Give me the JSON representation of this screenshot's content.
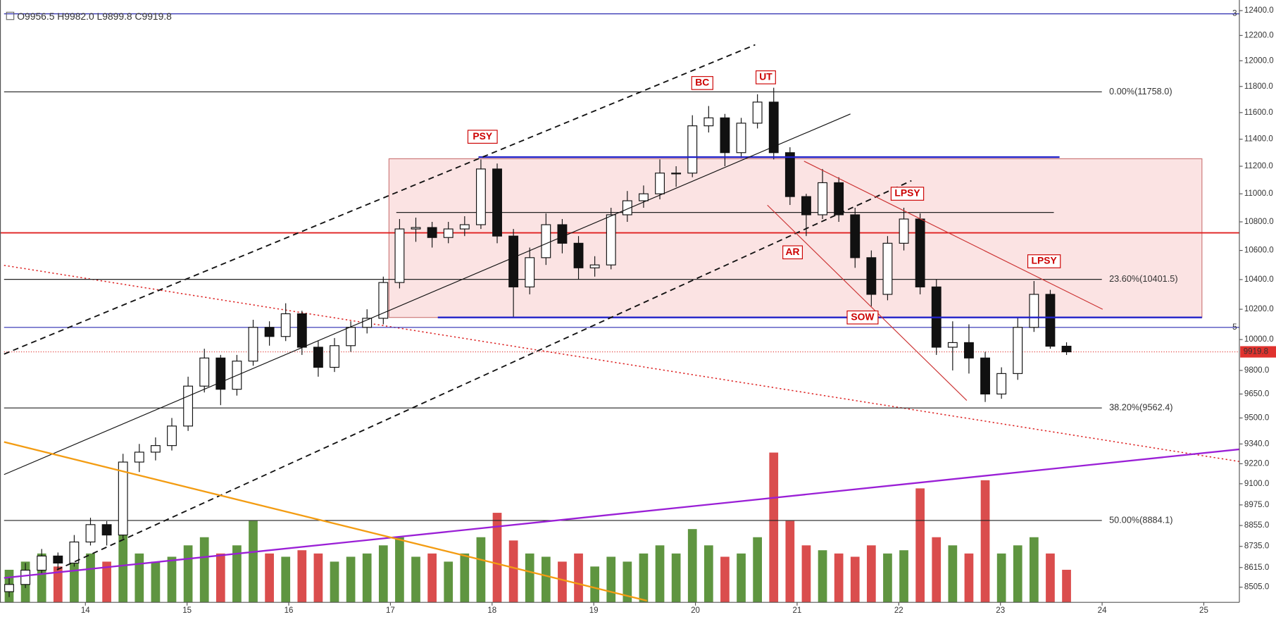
{
  "chart_data": {
    "type": "candlestick",
    "log_scale": true,
    "ohlc_header": "O9956.5 H9982.0 L9899.8 C9919.8",
    "x": [
      13.25,
      13.41,
      13.57,
      13.73,
      13.89,
      14.05,
      14.21,
      14.37,
      14.53,
      14.69,
      14.85,
      15.01,
      15.17,
      15.33,
      15.49,
      15.65,
      15.81,
      15.97,
      16.13,
      16.29,
      16.45,
      16.61,
      16.77,
      16.93,
      17.09,
      17.25,
      17.41,
      17.57,
      17.73,
      17.89,
      18.05,
      18.21,
      18.37,
      18.53,
      18.69,
      18.85,
      19.01,
      19.17,
      19.33,
      19.49,
      19.65,
      19.81,
      19.97,
      20.13,
      20.29,
      20.45,
      20.61,
      20.77,
      20.93,
      21.09,
      21.25,
      21.41,
      21.57,
      21.73,
      21.89,
      22.05,
      22.21,
      22.37,
      22.53,
      22.69,
      22.85,
      23.01,
      23.17,
      23.33,
      23.49,
      23.65
    ],
    "open": [
      8480,
      8520,
      8600,
      8680,
      8640,
      8760,
      8860,
      8800,
      9230,
      9290,
      9330,
      9450,
      9700,
      9880,
      9680,
      9860,
      10080,
      10020,
      10170,
      9950,
      9820,
      9960,
      10080,
      10140,
      10380,
      10750,
      10760,
      10690,
      10750,
      10780,
      11180,
      10700,
      10350,
      10550,
      10780,
      10650,
      10480,
      10500,
      10850,
      10950,
      11000,
      11150,
      11150,
      11500,
      11560,
      11300,
      11520,
      11680,
      11300,
      10980,
      10850,
      11080,
      10850,
      10550,
      10300,
      10650,
      10820,
      10350,
      9950,
      9980,
      9880,
      9650,
      9780,
      10080,
      10300,
      9956.5
    ],
    "high": [
      8560,
      8640,
      8720,
      8700,
      8800,
      8900,
      8880,
      9280,
      9340,
      9380,
      9500,
      9760,
      9940,
      9900,
      9900,
      10130,
      10120,
      10240,
      10190,
      9990,
      10010,
      10120,
      10200,
      10420,
      10820,
      10830,
      10800,
      10800,
      10840,
      11250,
      11220,
      10750,
      10620,
      10860,
      10820,
      10700,
      10560,
      10900,
      11020,
      11060,
      11250,
      11200,
      11580,
      11650,
      11590,
      11560,
      11740,
      11790,
      11340,
      11000,
      11180,
      11120,
      10900,
      10600,
      10700,
      10900,
      10860,
      10400,
      10120,
      10100,
      9920,
      9820,
      10150,
      10390,
      10330,
      9982
    ],
    "low": [
      8450,
      8500,
      8580,
      8600,
      8620,
      8740,
      8740,
      8780,
      9170,
      9240,
      9300,
      9420,
      9660,
      9580,
      9640,
      9830,
      9960,
      9990,
      9900,
      9760,
      9790,
      9920,
      10040,
      10100,
      10340,
      10660,
      10620,
      10650,
      10700,
      10750,
      10650,
      10150,
      10300,
      10500,
      10580,
      10400,
      10420,
      10470,
      10800,
      10900,
      10960,
      11050,
      11120,
      11450,
      11200,
      11260,
      11480,
      11250,
      10920,
      10700,
      10820,
      10800,
      10480,
      10220,
      10260,
      10600,
      10300,
      9900,
      9800,
      9780,
      9600,
      9620,
      9740,
      10050,
      9940,
      9899.8
    ],
    "close": [
      8520,
      8600,
      8680,
      8640,
      8760,
      8860,
      8800,
      9230,
      9290,
      9330,
      9450,
      9700,
      9880,
      9680,
      9860,
      10080,
      10020,
      10170,
      9950,
      9820,
      9960,
      10080,
      10140,
      10380,
      10750,
      10760,
      10690,
      10750,
      10780,
      11180,
      10700,
      10350,
      10550,
      10780,
      10650,
      10480,
      10500,
      10850,
      10950,
      11000,
      11150,
      11150,
      11500,
      11560,
      11300,
      11520,
      11680,
      11300,
      10980,
      10850,
      11080,
      10850,
      10550,
      10300,
      10650,
      10820,
      10350,
      9950,
      9980,
      9880,
      9650,
      9780,
      10080,
      10300,
      9956.5,
      9919.8
    ],
    "volume": [
      20,
      25,
      30,
      22,
      28,
      30,
      25,
      45,
      30,
      25,
      28,
      35,
      40,
      30,
      35,
      50,
      30,
      28,
      32,
      30,
      25,
      28,
      30,
      35,
      40,
      28,
      30,
      25,
      30,
      40,
      55,
      38,
      30,
      28,
      25,
      30,
      22,
      28,
      25,
      30,
      35,
      30,
      45,
      35,
      28,
      30,
      40,
      92,
      50,
      35,
      32,
      30,
      28,
      35,
      30,
      32,
      70,
      40,
      35,
      30,
      75,
      30,
      35,
      40,
      30,
      20
    ],
    "volume_ylim": [
      0,
      100
    ],
    "candle_color": "#111111",
    "up_fill": "#ffffff",
    "volume_up_color": "#4e8a2b",
    "volume_down_color": "#d63a3a",
    "last_price_color": "#e0322e",
    "xlim": [
      13.2,
      25.35
    ],
    "xticks": [
      14,
      15,
      16,
      17,
      18,
      19,
      20,
      21,
      22,
      23,
      24,
      25
    ],
    "ylim": [
      8421,
      12453
    ],
    "yticks": [
      {
        "value": 12400,
        "label": "12400.0"
      },
      {
        "value": 12200,
        "label": "12200.0"
      },
      {
        "value": 12000,
        "label": "12000.0"
      },
      {
        "value": 11800,
        "label": "11800.0"
      },
      {
        "value": 11600,
        "label": "11600.0"
      },
      {
        "value": 11400,
        "label": "11400.0"
      },
      {
        "value": 11200,
        "label": "11200.0"
      },
      {
        "value": 11000,
        "label": "11000.0"
      },
      {
        "value": 10800,
        "label": "10800.0"
      },
      {
        "value": 10600,
        "label": "10600.0"
      },
      {
        "value": 10400,
        "label": "10400.0"
      },
      {
        "value": 10200,
        "label": "10200.0"
      },
      {
        "value": 10000,
        "label": "10000.0"
      },
      {
        "value": 9800,
        "label": "9800.0"
      },
      {
        "value": 9650,
        "label": "9650.0"
      },
      {
        "value": 9500,
        "label": "9500.0"
      },
      {
        "value": 9340,
        "label": "9340.0"
      },
      {
        "value": 9220,
        "label": "9220.0"
      },
      {
        "value": 9100,
        "label": "9100.0"
      },
      {
        "value": 8975,
        "label": "8975.0"
      },
      {
        "value": 8855,
        "label": "8855.0"
      },
      {
        "value": 8735,
        "label": "8735.0"
      },
      {
        "value": 8615,
        "label": "8615.0"
      },
      {
        "value": 8505,
        "label": "8505.0"
      }
    ],
    "fib_levels": [
      {
        "value": 11758.0,
        "label": "0.00%(11758.0)"
      },
      {
        "value": 10401.5,
        "label": "23.60%(10401.5)"
      },
      {
        "value": 9562.4,
        "label": "38.20%(9562.4)"
      },
      {
        "value": 8884.1,
        "label": "50.00%(8884.1)"
      }
    ],
    "fib_color": "#222222",
    "hlines": [
      {
        "value": 12374,
        "label": "3"
      },
      {
        "value": 10080,
        "label": "5"
      }
    ],
    "hline_color": "#2b2bb0",
    "annotations": [
      "PSY",
      "BC",
      "UT",
      "AR",
      "SOW",
      "LPSY",
      "LPSY"
    ]
  }
}
